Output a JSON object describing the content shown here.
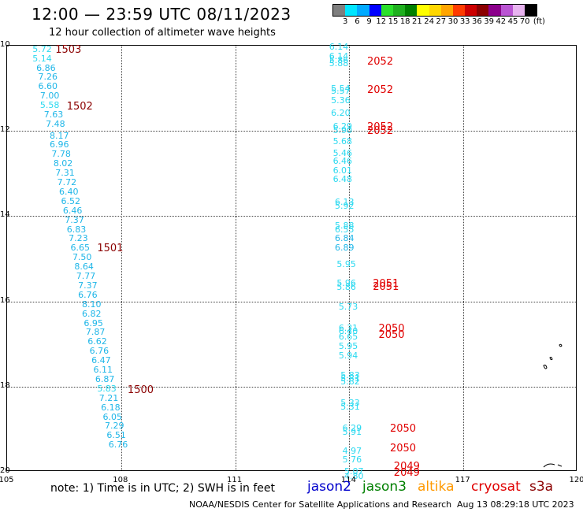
{
  "header": {
    "title": "12:00 — 23:59 UTC 08/11/2023",
    "subtitle": "12 hour collection of altimeter wave heights"
  },
  "colorbar": {
    "unit_label": "(ft)",
    "labels": [
      "3",
      "6",
      "9",
      "12",
      "15",
      "18",
      "21",
      "24",
      "27",
      "30",
      "33",
      "36",
      "39",
      "42",
      "45",
      "70"
    ],
    "colors": [
      "#7f7f7f",
      "#00e6ff",
      "#00aaff",
      "#0000ff",
      "#2ae02a",
      "#1fb01f",
      "#008000",
      "#ffff00",
      "#ffd700",
      "#ffa500",
      "#ff3c00",
      "#cd0000",
      "#8b0000",
      "#8b008b",
      "#ba55d3",
      "#e8b4f0",
      "#000000"
    ]
  },
  "axes": {
    "lat_labels": [
      "10",
      "12",
      "14",
      "16",
      "18",
      "20"
    ],
    "lon_labels": [
      "105",
      "108",
      "111",
      "114",
      "117",
      "120"
    ]
  },
  "map_data": {
    "lon_range": [
      105,
      120
    ],
    "lat_range": [
      10,
      20
    ],
    "tracks": [
      {
        "satellite": "s3a",
        "observations": [
          {
            "lat": 10.05,
            "lon": 106.0,
            "value": "5.72",
            "color": "#2bd9f0"
          },
          {
            "lat": 10.27,
            "lon": 106.0,
            "value": "5.14",
            "color": "#2bd9f0"
          },
          {
            "lat": 10.49,
            "lon": 106.1,
            "value": "6.86",
            "color": "#1fb6e8"
          },
          {
            "lat": 10.71,
            "lon": 106.15,
            "value": "7.26",
            "color": "#1fb6e8"
          },
          {
            "lat": 10.93,
            "lon": 106.15,
            "value": "6.60",
            "color": "#1fb6e8"
          },
          {
            "lat": 11.15,
            "lon": 106.2,
            "value": "7.00",
            "color": "#1fb6e8"
          },
          {
            "lat": 11.37,
            "lon": 106.2,
            "value": "5.58",
            "color": "#2bd9f0"
          },
          {
            "lat": 11.59,
            "lon": 106.3,
            "value": "7.63",
            "color": "#1fb6e8"
          },
          {
            "lat": 11.81,
            "lon": 106.35,
            "value": "7.48",
            "color": "#1fb6e8"
          },
          {
            "lat": 12.08,
            "lon": 106.45,
            "value": "8.17",
            "color": "#1fb6e8"
          },
          {
            "lat": 12.3,
            "lon": 106.45,
            "value": "6.96",
            "color": "#1fb6e8"
          },
          {
            "lat": 12.52,
            "lon": 106.5,
            "value": "7.78",
            "color": "#1fb6e8"
          },
          {
            "lat": 12.74,
            "lon": 106.55,
            "value": "8.02",
            "color": "#1fb6e8"
          },
          {
            "lat": 12.96,
            "lon": 106.6,
            "value": "7.31",
            "color": "#1fb6e8"
          },
          {
            "lat": 13.18,
            "lon": 106.65,
            "value": "7.72",
            "color": "#1fb6e8"
          },
          {
            "lat": 13.4,
            "lon": 106.7,
            "value": "6.40",
            "color": "#1fb6e8"
          },
          {
            "lat": 13.62,
            "lon": 106.75,
            "value": "6.52",
            "color": "#1fb6e8"
          },
          {
            "lat": 13.84,
            "lon": 106.8,
            "value": "6.46",
            "color": "#1fb6e8"
          },
          {
            "lat": 14.06,
            "lon": 106.85,
            "value": "7.37",
            "color": "#1fb6e8"
          },
          {
            "lat": 14.28,
            "lon": 106.9,
            "value": "6.83",
            "color": "#1fb6e8"
          },
          {
            "lat": 14.5,
            "lon": 106.95,
            "value": "7.23",
            "color": "#1fb6e8"
          },
          {
            "lat": 14.72,
            "lon": 107.0,
            "value": "6.65",
            "color": "#1fb6e8"
          },
          {
            "lat": 14.94,
            "lon": 107.05,
            "value": "7.50",
            "color": "#1fb6e8"
          },
          {
            "lat": 15.16,
            "lon": 107.1,
            "value": "8.64",
            "color": "#1fb6e8"
          },
          {
            "lat": 15.38,
            "lon": 107.15,
            "value": "7.77",
            "color": "#1fb6e8"
          },
          {
            "lat": 15.6,
            "lon": 107.2,
            "value": "7.37",
            "color": "#1fb6e8"
          },
          {
            "lat": 15.82,
            "lon": 107.2,
            "value": "6.76",
            "color": "#1fb6e8"
          },
          {
            "lat": 16.04,
            "lon": 107.3,
            "value": "8.10",
            "color": "#1fb6e8"
          },
          {
            "lat": 16.26,
            "lon": 107.3,
            "value": "6.82",
            "color": "#1fb6e8"
          },
          {
            "lat": 16.48,
            "lon": 107.35,
            "value": "6.95",
            "color": "#1fb6e8"
          },
          {
            "lat": 16.7,
            "lon": 107.4,
            "value": "7.87",
            "color": "#1fb6e8"
          },
          {
            "lat": 16.92,
            "lon": 107.45,
            "value": "6.62",
            "color": "#1fb6e8"
          },
          {
            "lat": 17.14,
            "lon": 107.5,
            "value": "6.76",
            "color": "#1fb6e8"
          },
          {
            "lat": 17.36,
            "lon": 107.55,
            "value": "6.47",
            "color": "#1fb6e8"
          },
          {
            "lat": 17.58,
            "lon": 107.6,
            "value": "6.11",
            "color": "#1fb6e8"
          },
          {
            "lat": 17.8,
            "lon": 107.65,
            "value": "6.87",
            "color": "#1fb6e8"
          },
          {
            "lat": 18.02,
            "lon": 107.7,
            "value": "5.83",
            "color": "#2bd9f0"
          },
          {
            "lat": 18.24,
            "lon": 107.75,
            "value": "7.21",
            "color": "#1fb6e8"
          },
          {
            "lat": 18.46,
            "lon": 107.8,
            "value": "6.18",
            "color": "#1fb6e8"
          },
          {
            "lat": 18.68,
            "lon": 107.85,
            "value": "6.05",
            "color": "#1fb6e8"
          },
          {
            "lat": 18.9,
            "lon": 107.9,
            "value": "7.29",
            "color": "#1fb6e8"
          },
          {
            "lat": 19.12,
            "lon": 107.95,
            "value": "6.51",
            "color": "#1fb6e8"
          },
          {
            "lat": 19.34,
            "lon": 108.0,
            "value": "6.76",
            "color": "#1fb6e8"
          }
        ]
      },
      {
        "satellite": "cryosat",
        "observations": [
          {
            "lat": 10.0,
            "lon": 113.8,
            "value": "6.14",
            "color": "#2bd9f0"
          },
          {
            "lat": 10.22,
            "lon": 113.8,
            "value": "6.14",
            "color": "#2bd9f0"
          },
          {
            "lat": 10.32,
            "lon": 113.8,
            "value": "5.86",
            "color": "#2bd9f0"
          },
          {
            "lat": 10.38,
            "lon": 113.8,
            "value": "5.88",
            "color": "#2bd9f0"
          },
          {
            "lat": 10.98,
            "lon": 113.85,
            "value": "5.54",
            "color": "#2bd9f0"
          },
          {
            "lat": 11.04,
            "lon": 113.85,
            "value": "5.57",
            "color": "#2bd9f0"
          },
          {
            "lat": 11.26,
            "lon": 113.85,
            "value": "5.36",
            "color": "#2bd9f0"
          },
          {
            "lat": 11.56,
            "lon": 113.85,
            "value": "6.20",
            "color": "#2bd9f0"
          },
          {
            "lat": 11.86,
            "lon": 113.9,
            "value": "6.29",
            "color": "#2bd9f0"
          },
          {
            "lat": 11.96,
            "lon": 113.9,
            "value": "5.90",
            "color": "#2bd9f0"
          },
          {
            "lat": 12.22,
            "lon": 113.9,
            "value": "5.68",
            "color": "#2bd9f0"
          },
          {
            "lat": 12.5,
            "lon": 113.9,
            "value": "5.46",
            "color": "#2bd9f0"
          },
          {
            "lat": 12.68,
            "lon": 113.9,
            "value": "6.46",
            "color": "#2bd9f0"
          },
          {
            "lat": 12.9,
            "lon": 113.9,
            "value": "6.01",
            "color": "#2bd9f0"
          },
          {
            "lat": 13.1,
            "lon": 113.9,
            "value": "6.48",
            "color": "#2bd9f0"
          },
          {
            "lat": 13.65,
            "lon": 113.95,
            "value": "6.13",
            "color": "#2bd9f0"
          },
          {
            "lat": 13.73,
            "lon": 113.95,
            "value": "5.92",
            "color": "#2bd9f0"
          },
          {
            "lat": 14.2,
            "lon": 113.95,
            "value": "5.88",
            "color": "#2bd9f0"
          },
          {
            "lat": 14.28,
            "lon": 113.95,
            "value": "6.55",
            "color": "#2bd9f0"
          },
          {
            "lat": 14.5,
            "lon": 113.95,
            "value": "6.84",
            "color": "#1fb6e8"
          },
          {
            "lat": 14.72,
            "lon": 113.95,
            "value": "6.89",
            "color": "#1fb6e8"
          },
          {
            "lat": 15.1,
            "lon": 114.0,
            "value": "5.95",
            "color": "#2bd9f0"
          },
          {
            "lat": 15.55,
            "lon": 114.0,
            "value": "5.96",
            "color": "#2bd9f0"
          },
          {
            "lat": 15.63,
            "lon": 114.0,
            "value": "5.86",
            "color": "#2bd9f0"
          },
          {
            "lat": 16.1,
            "lon": 114.05,
            "value": "5.73",
            "color": "#2bd9f0"
          },
          {
            "lat": 16.6,
            "lon": 114.05,
            "value": "6.31",
            "color": "#2bd9f0"
          },
          {
            "lat": 16.68,
            "lon": 114.05,
            "value": "6.40",
            "color": "#2bd9f0"
          },
          {
            "lat": 16.8,
            "lon": 114.05,
            "value": "6.65",
            "color": "#2bd9f0"
          },
          {
            "lat": 17.02,
            "lon": 114.05,
            "value": "5.95",
            "color": "#2bd9f0"
          },
          {
            "lat": 17.24,
            "lon": 114.05,
            "value": "5.94",
            "color": "#2bd9f0"
          },
          {
            "lat": 17.7,
            "lon": 114.1,
            "value": "5.83",
            "color": "#2bd9f0"
          },
          {
            "lat": 17.78,
            "lon": 114.1,
            "value": "5.81",
            "color": "#2bd9f0"
          },
          {
            "lat": 17.86,
            "lon": 114.1,
            "value": "5.82",
            "color": "#2bd9f0"
          },
          {
            "lat": 18.36,
            "lon": 114.1,
            "value": "5.33",
            "color": "#2bd9f0"
          },
          {
            "lat": 18.44,
            "lon": 114.1,
            "value": "5.31",
            "color": "#2bd9f0"
          },
          {
            "lat": 18.94,
            "lon": 114.15,
            "value": "6.29",
            "color": "#2bd9f0"
          },
          {
            "lat": 19.04,
            "lon": 114.15,
            "value": "5.91",
            "color": "#2bd9f0"
          },
          {
            "lat": 19.48,
            "lon": 114.15,
            "value": "4.97",
            "color": "#2bd9f0"
          },
          {
            "lat": 19.68,
            "lon": 114.15,
            "value": "5.76",
            "color": "#2bd9f0"
          },
          {
            "lat": 19.96,
            "lon": 114.2,
            "value": "5.07",
            "color": "#2bd9f0"
          },
          {
            "lat": 20.08,
            "lon": 114.2,
            "value": "4.80",
            "color": "#2bd9f0"
          }
        ]
      }
    ],
    "pass_labels": [
      {
        "lat": 10.08,
        "lon": 106.6,
        "text": "1503",
        "color": "#8b0000"
      },
      {
        "lat": 11.4,
        "lon": 106.9,
        "text": "1502",
        "color": "#8b0000"
      },
      {
        "lat": 14.74,
        "lon": 107.7,
        "text": "1501",
        "color": "#8b0000"
      },
      {
        "lat": 18.05,
        "lon": 108.5,
        "text": "1500",
        "color": "#8b0000"
      },
      {
        "lat": 10.35,
        "lon": 114.8,
        "text": "2052",
        "color": "#e00000"
      },
      {
        "lat": 11.02,
        "lon": 114.8,
        "text": "2052",
        "color": "#e00000"
      },
      {
        "lat": 11.88,
        "lon": 114.8,
        "text": "2052",
        "color": "#e00000"
      },
      {
        "lat": 11.98,
        "lon": 114.8,
        "text": "2052",
        "color": "#e00000"
      },
      {
        "lat": 15.56,
        "lon": 114.95,
        "text": "2051",
        "color": "#e00000"
      },
      {
        "lat": 15.64,
        "lon": 114.95,
        "text": "2051",
        "color": "#e00000"
      },
      {
        "lat": 16.62,
        "lon": 115.1,
        "text": "2050",
        "color": "#e00000"
      },
      {
        "lat": 16.76,
        "lon": 115.1,
        "text": "2050",
        "color": "#e00000"
      },
      {
        "lat": 18.96,
        "lon": 115.4,
        "text": "2050",
        "color": "#e00000"
      },
      {
        "lat": 19.42,
        "lon": 115.4,
        "text": "2050",
        "color": "#e00000"
      },
      {
        "lat": 19.86,
        "lon": 115.5,
        "text": "2049",
        "color": "#e00000"
      },
      {
        "lat": 20.0,
        "lon": 115.5,
        "text": "2049",
        "color": "#e00000"
      }
    ]
  },
  "footer": {
    "note": "note:  1) Time is in UTC; 2) SWH is in feet",
    "satellites": [
      {
        "name": "jason2",
        "color": "#0000cc"
      },
      {
        "name": "jason3",
        "color": "#008000"
      },
      {
        "name": "altika",
        "color": "#ff9900"
      },
      {
        "name": "cryosat",
        "color": "#e00000"
      },
      {
        "name": "s3a",
        "color": "#8b0000"
      }
    ],
    "credit": "NOAA/NESDIS Center for Satellite Applications and Research",
    "timestamp": "Aug 13 08:29:18 UTC 2023"
  }
}
